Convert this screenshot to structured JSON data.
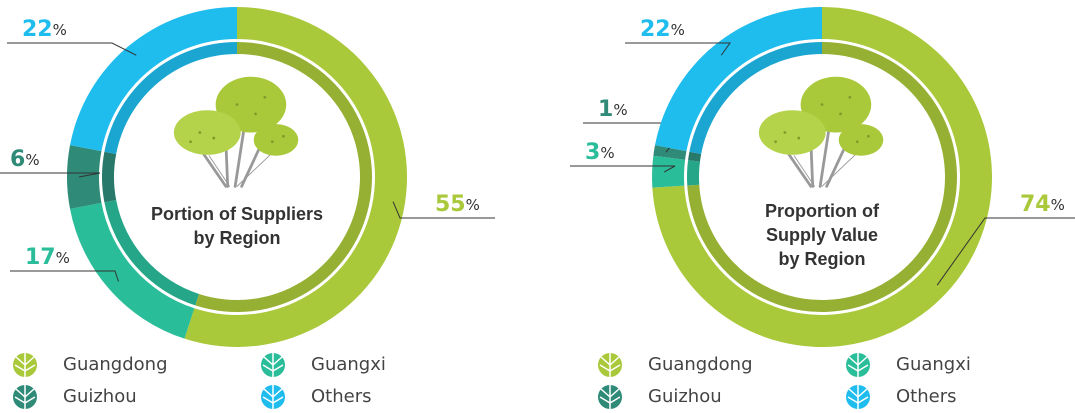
{
  "chart_data": [
    {
      "type": "donut",
      "title": [
        "Portion of Suppliers",
        "by Region"
      ],
      "categories": [
        "Guangdong",
        "Guangxi",
        "Guizhou",
        "Others"
      ],
      "values": [
        55,
        17,
        6,
        22
      ],
      "value_labels": [
        "55%",
        "17%",
        "6%",
        "22%"
      ],
      "colors": [
        "#a9c83a",
        "#2abd9a",
        "#2f8a78",
        "#1fbcee"
      ]
    },
    {
      "type": "donut",
      "title": [
        "Proportion of",
        "Supply Value",
        "by Region"
      ],
      "categories": [
        "Guangdong",
        "Guangxi",
        "Guizhou",
        "Others"
      ],
      "values": [
        74,
        3,
        1,
        22
      ],
      "value_labels": [
        "74%",
        "3%",
        "1%",
        "22%"
      ],
      "colors": [
        "#a9c83a",
        "#2abd9a",
        "#2f8a78",
        "#1fbcee"
      ]
    }
  ]
}
